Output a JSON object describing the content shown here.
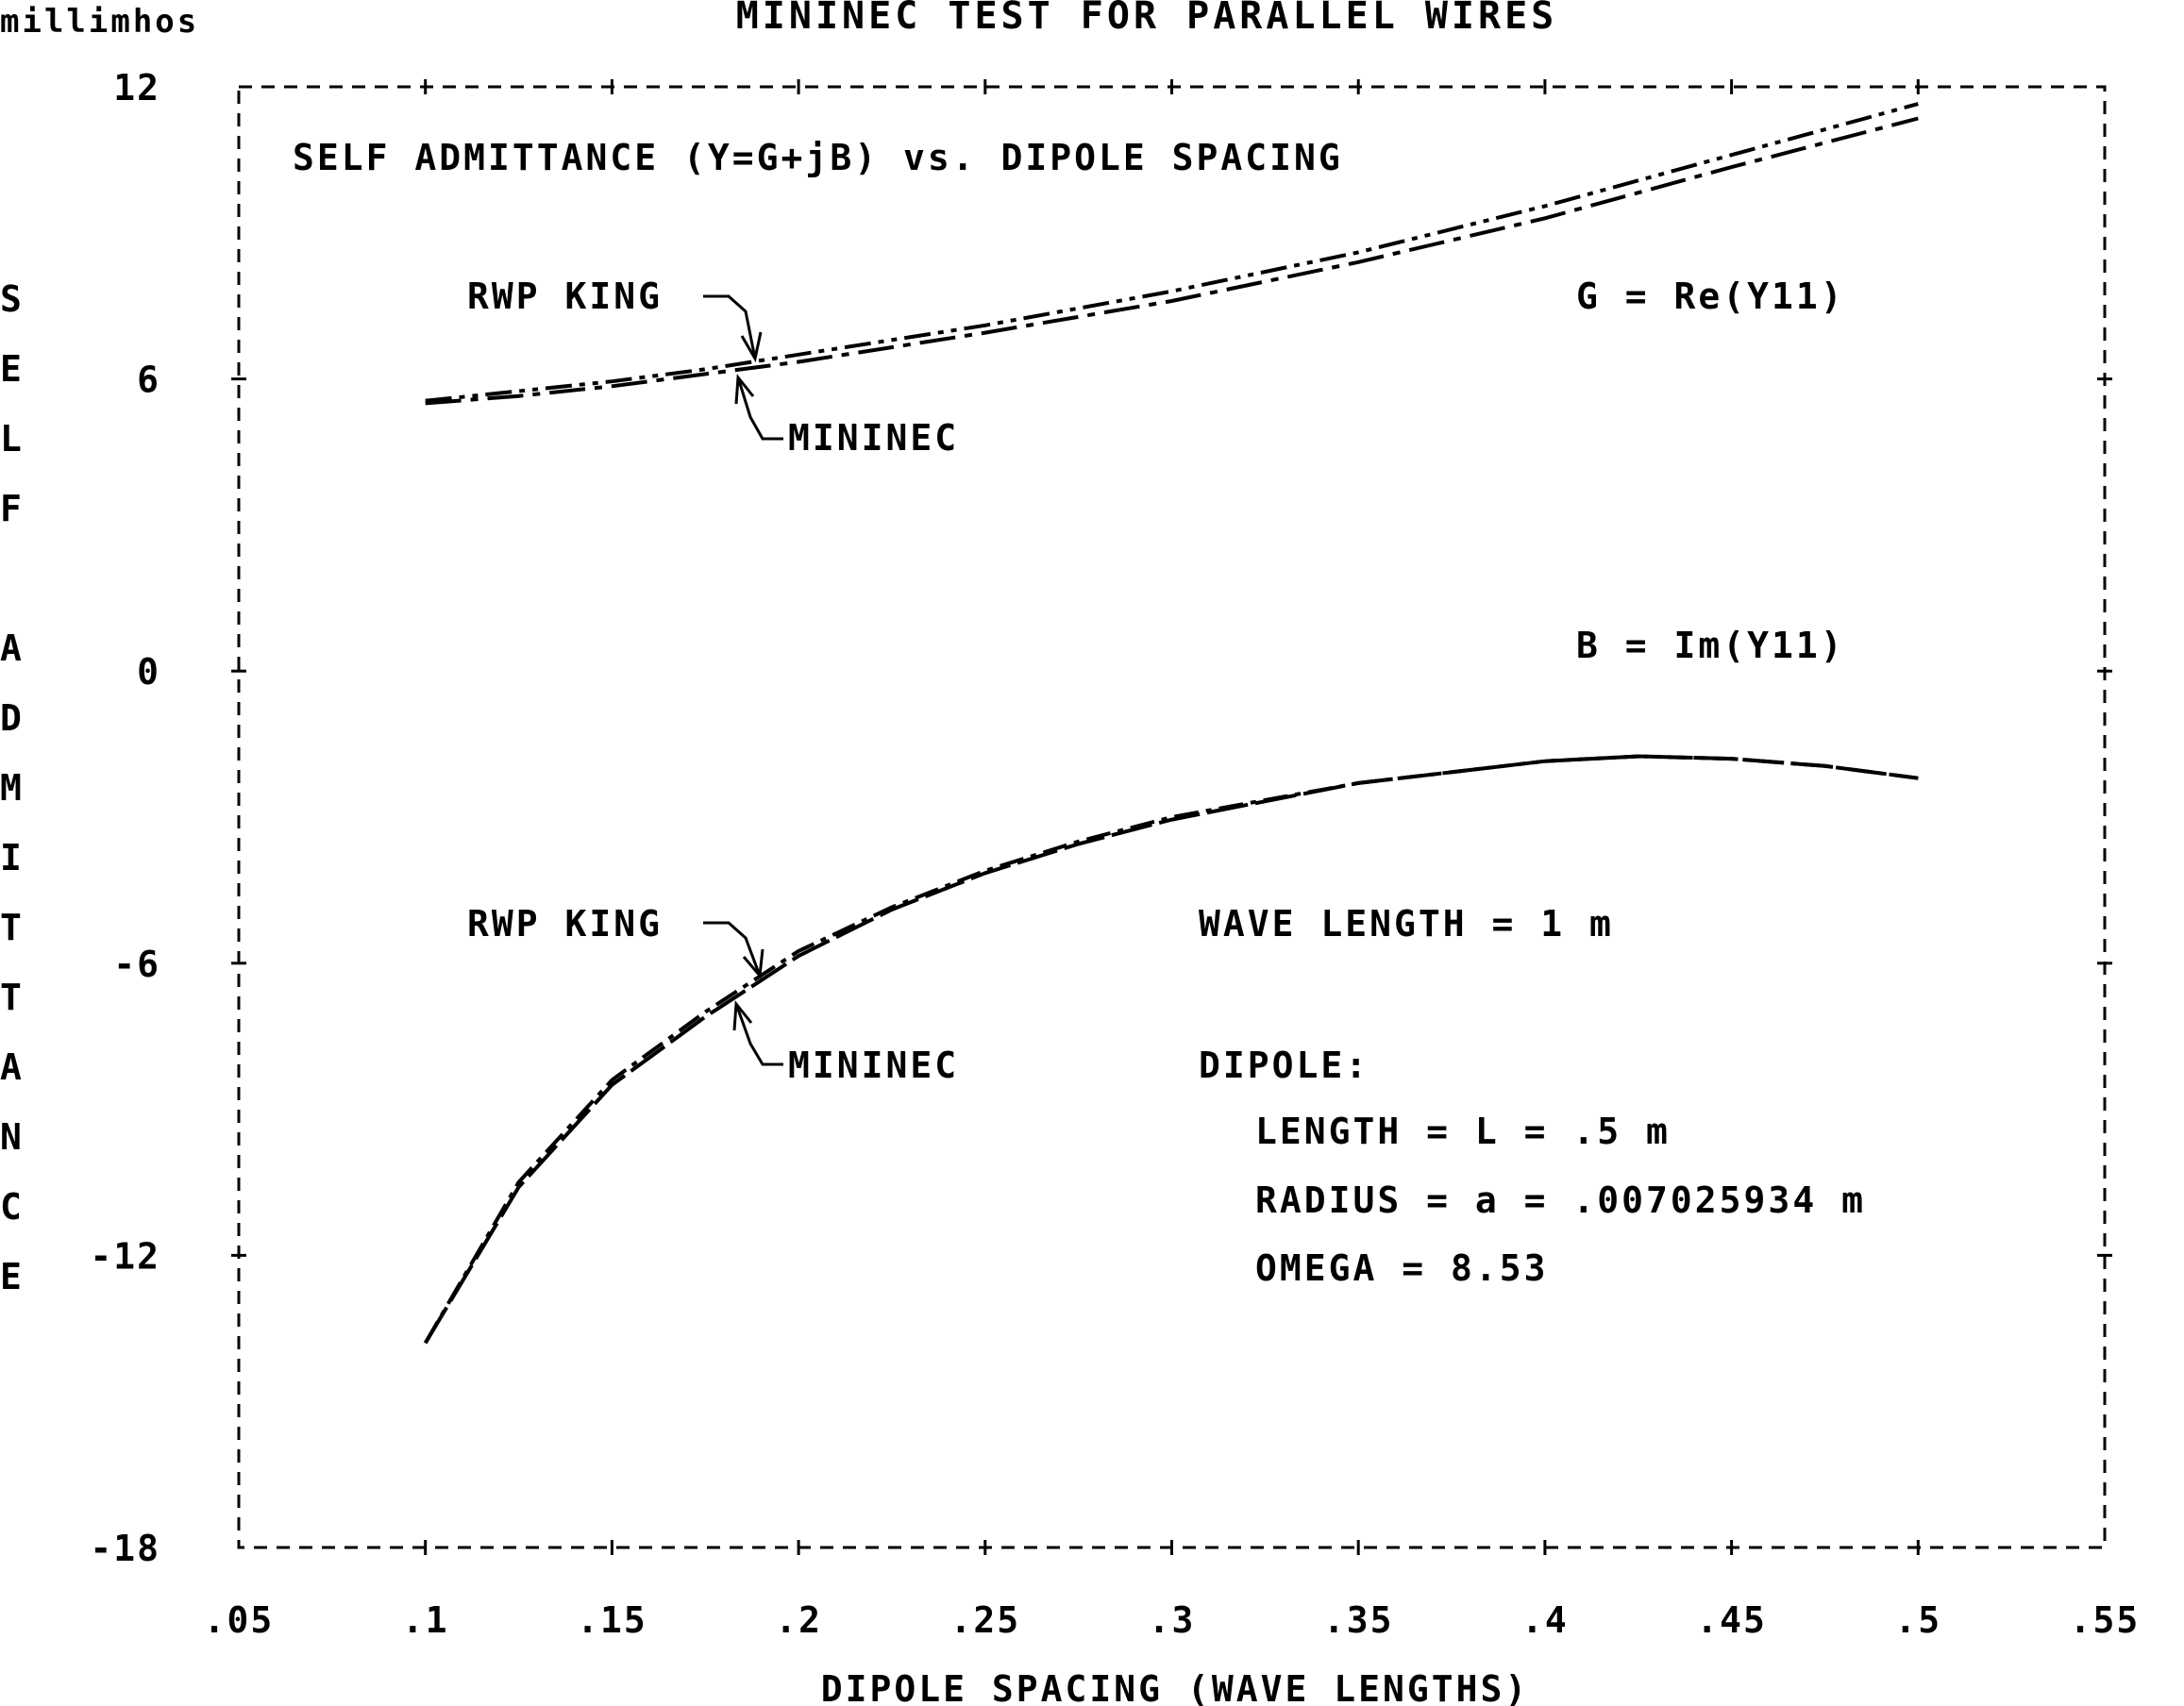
{
  "figure": {
    "title": "MININEC TEST FOR PARALLEL WIRES",
    "units_label": "millimhos",
    "inner_title": "SELF ADMITTANCE (Y=G+jB) vs. DIPOLE SPACING",
    "ylabel_letters": [
      "S",
      "E",
      "L",
      "F",
      "",
      "A",
      "D",
      "M",
      "I",
      "T",
      "T",
      "A",
      "N",
      "C",
      "E"
    ],
    "xlabel": "DIPOLE SPACING (WAVE LENGTHS)",
    "g_label": "G = Re(Y11)",
    "b_label": "B = Im(Y11)",
    "rwp_label_upper": "RWP KING",
    "mininec_label_upper": "MININEC",
    "rwp_label_lower": "RWP KING",
    "mininec_label_lower": "MININEC",
    "wavelength": "WAVE LENGTH = 1 m",
    "dipole_heading": "DIPOLE:",
    "dipole_length": "LENGTH = L = .5 m",
    "dipole_radius": "RADIUS = a = .007025934 m",
    "dipole_omega": "OMEGA = 8.53"
  },
  "chart_data": {
    "type": "line",
    "title": "MININEC TEST FOR PARALLEL WIRES",
    "subtitle": "SELF ADMITTANCE (Y=G+jB) vs. DIPOLE SPACING",
    "xlabel": "DIPOLE SPACING (WAVE LENGTHS)",
    "ylabel": "SELF ADMITTANCE",
    "xlim": [
      0.05,
      0.55
    ],
    "ylim": [
      -18,
      12
    ],
    "xticks": [
      0.05,
      0.1,
      0.15,
      0.2,
      0.25,
      0.3,
      0.35,
      0.4,
      0.45,
      0.5,
      0.55
    ],
    "xtick_labels": [
      ".05",
      ".1",
      ".15",
      ".2",
      ".25",
      ".3",
      ".35",
      ".4",
      ".45",
      ".5",
      ".55"
    ],
    "yticks": [
      -18,
      -12,
      -6,
      0,
      6,
      12
    ],
    "ytick_labels": [
      "-18",
      "-12",
      "-6",
      "0",
      "6",
      "12"
    ],
    "grid": false,
    "series": [
      {
        "name": "RWP KING",
        "group": "G = Re(Y11)",
        "x": [
          0.1,
          0.125,
          0.15,
          0.175,
          0.2,
          0.25,
          0.3,
          0.35,
          0.4,
          0.45,
          0.5
        ],
        "values": [
          5.55,
          5.75,
          5.95,
          6.2,
          6.5,
          7.1,
          7.8,
          8.6,
          9.55,
          10.6,
          11.65
        ]
      },
      {
        "name": "MININEC",
        "group": "G = Re(Y11)",
        "x": [
          0.1,
          0.125,
          0.15,
          0.175,
          0.2,
          0.25,
          0.3,
          0.35,
          0.4,
          0.45,
          0.5
        ],
        "values": [
          5.5,
          5.65,
          5.85,
          6.1,
          6.35,
          6.95,
          7.6,
          8.4,
          9.3,
          10.35,
          11.35
        ]
      },
      {
        "name": "RWP KING",
        "group": "B = Im(Y11)",
        "x": [
          0.1,
          0.125,
          0.15,
          0.175,
          0.2,
          0.225,
          0.25,
          0.275,
          0.3,
          0.35,
          0.4,
          0.425,
          0.45,
          0.475,
          0.5
        ],
        "values": [
          -13.8,
          -10.5,
          -8.4,
          -7.0,
          -5.75,
          -4.85,
          -4.1,
          -3.5,
          -3.0,
          -2.3,
          -1.85,
          -1.75,
          -1.8,
          -1.95,
          -2.2
        ]
      },
      {
        "name": "MININEC",
        "group": "B = Im(Y11)",
        "x": [
          0.1,
          0.125,
          0.15,
          0.175,
          0.2,
          0.225,
          0.25,
          0.275,
          0.3,
          0.35,
          0.4,
          0.425,
          0.45,
          0.475,
          0.5
        ],
        "values": [
          -13.8,
          -10.6,
          -8.5,
          -7.1,
          -5.85,
          -4.9,
          -4.15,
          -3.55,
          -3.05,
          -2.3,
          -1.85,
          -1.75,
          -1.8,
          -1.95,
          -2.2
        ]
      }
    ]
  }
}
